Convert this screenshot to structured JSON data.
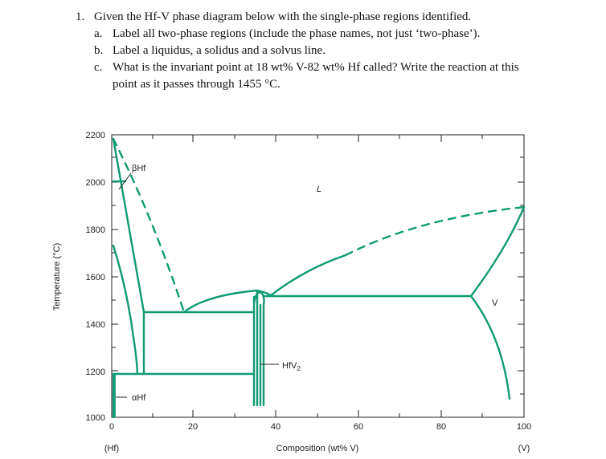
{
  "question": {
    "number": "1.",
    "stem": "Given the Hf-V phase diagram below with the single-phase regions identified.",
    "parts": [
      {
        "letter": "a.",
        "text": "Label all two-phase regions (include the phase names, not just ‘two-phase’)."
      },
      {
        "letter": "b.",
        "text": "Label a liquidus, a solidus and a solvus line."
      },
      {
        "letter": "c.",
        "text": "What is the invariant point at 18 wt% V-82 wt% Hf called?  Write the reaction at this"
      },
      {
        "letter": "",
        "text": "point as it passes through 1455 °C."
      }
    ]
  },
  "diagram": {
    "ylabel": "Temperature (°C)",
    "xlabel": "Composition (wt% V)",
    "x_end_left": "(Hf)",
    "x_end_right": "(V)",
    "y_ticks": [
      "2200",
      "2000",
      "1800",
      "1600",
      "1400",
      "1200",
      "1000"
    ],
    "x_ticks": [
      "0",
      "20",
      "40",
      "60",
      "80",
      "100"
    ],
    "phases": {
      "beta_hf": "βHf",
      "alpha_hf": "αHf",
      "liquid": "L",
      "hfv2_main": "HfV",
      "hfv2_sub": "2",
      "v": "V"
    },
    "line_color": "#0f9a73",
    "xlim": [
      0,
      100
    ],
    "ylim": [
      1000,
      2200
    ]
  }
}
